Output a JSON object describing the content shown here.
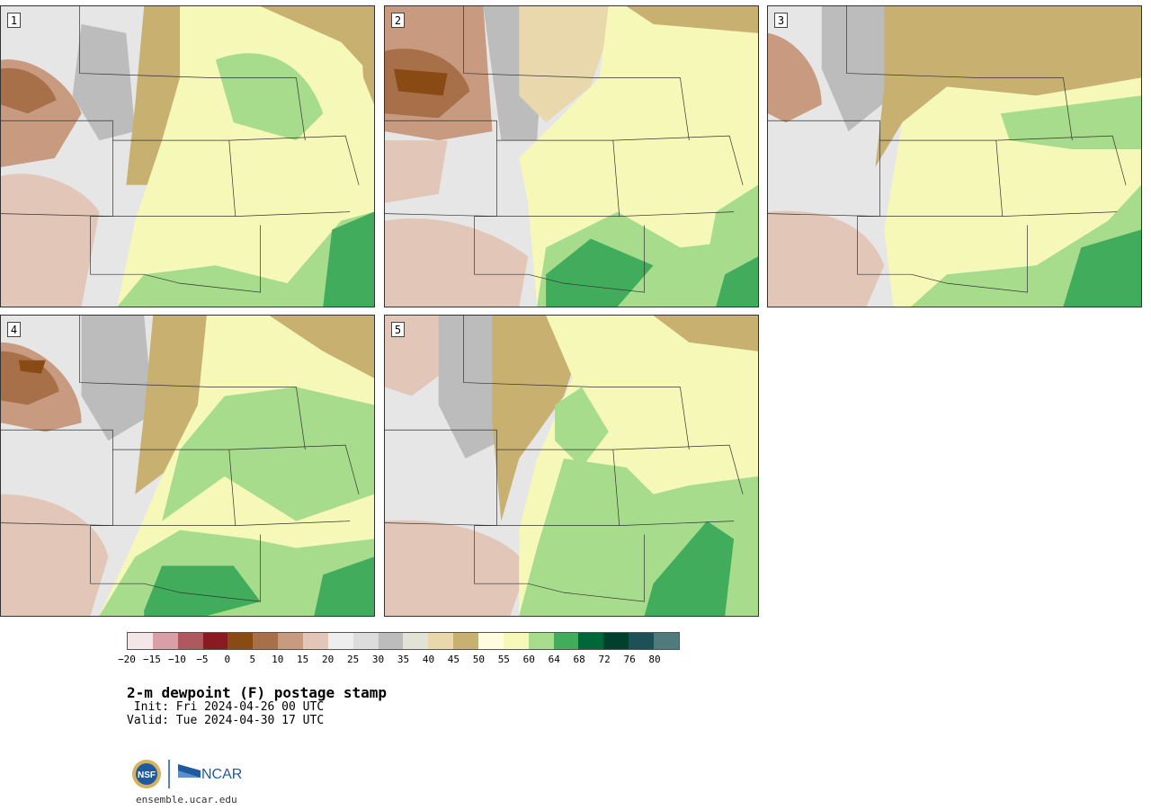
{
  "panels": [
    {
      "id": 1,
      "label": "1"
    },
    {
      "id": 2,
      "label": "2"
    },
    {
      "id": 3,
      "label": "3"
    },
    {
      "id": 4,
      "label": "4"
    },
    {
      "id": 5,
      "label": "5"
    }
  ],
  "colorbar": {
    "colors": [
      "#f4e6e8",
      "#d8a0a6",
      "#b0585f",
      "#8a1a22",
      "#8a4a14",
      "#a87048",
      "#c89a80",
      "#e2c6b8",
      "#eeeeee",
      "#dcdcdc",
      "#bcbcbc",
      "#e2e2d6",
      "#e8d8ac",
      "#c8b070",
      "#fffce0",
      "#f6f8b8",
      "#a6dc8c",
      "#40ac5c",
      "#006838",
      "#00402c",
      "#1e5058",
      "#507a7c"
    ],
    "ticks": [
      "−20",
      "−15",
      "−10",
      "−5",
      "0",
      "5",
      "10",
      "15",
      "20",
      "25",
      "30",
      "35",
      "40",
      "45",
      "50",
      "55",
      "60",
      "64",
      "68",
      "72",
      "76",
      "80"
    ]
  },
  "title": "2-m dewpoint (F) postage stamp",
  "init_line": " Init: Fri 2024-04-26 00 UTC",
  "valid_line": "Valid: Tue 2024-04-30 17 UTC",
  "logos": {
    "left_name": "nsf-logo",
    "left_text": "NSF",
    "right_text": "NCAR"
  },
  "site": "ensemble.ucar.edu"
}
